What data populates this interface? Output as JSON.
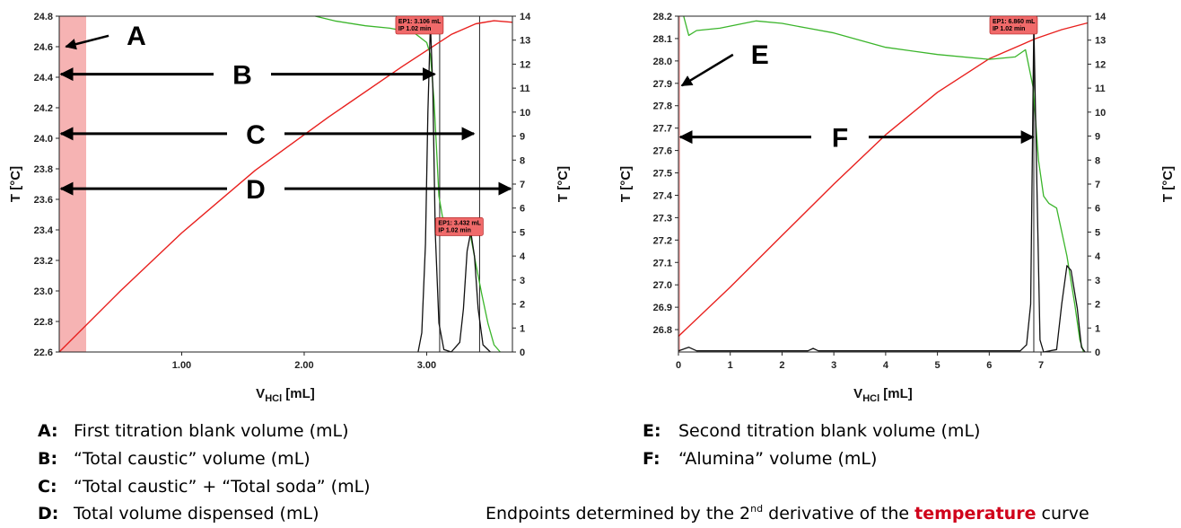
{
  "colors": {
    "temperature": "#e8201e",
    "first_derivative": "#3bb52b",
    "second_derivative": "#111111",
    "blank_band": "#f6b3b3",
    "ep_label": "#f06a6a"
  },
  "chart_data": [
    {
      "type": "line",
      "xlabel_main": "V",
      "xlabel_sub": "HCl",
      "xlabel_unit": " [mL]",
      "ylabel": "T [°C]",
      "y2label": "T [°C]",
      "xlim": [
        0,
        3.7
      ],
      "ylim": [
        22.6,
        24.8
      ],
      "y2lim": [
        0,
        14
      ],
      "xticks": [
        1.0,
        2.0,
        3.0
      ],
      "xtick_labels": [
        "1.00",
        "2.00",
        "3.00"
      ],
      "yticks": [
        22.6,
        22.8,
        23.0,
        23.2,
        23.4,
        23.6,
        23.8,
        24.0,
        24.2,
        24.4,
        24.6,
        24.8
      ],
      "ytick_labels": [
        "22.6",
        "22.8",
        "23.0",
        "23.2",
        "23.4",
        "23.6",
        "23.8",
        "24.0",
        "24.2",
        "24.4",
        "24.6",
        "24.8"
      ],
      "y2ticks": [
        0,
        1,
        2,
        3,
        4,
        5,
        6,
        7,
        8,
        9,
        10,
        11,
        12,
        13,
        14
      ],
      "y2tick_labels": [
        "0",
        "1",
        "2",
        "3",
        "4",
        "5",
        "6",
        "7",
        "8",
        "9",
        "10",
        "11",
        "12",
        "13",
        "14"
      ],
      "shaded_band": [
        0,
        0.22
      ],
      "endpoints": [
        {
          "x": 3.106,
          "line1": "EP1: 3.106 mL",
          "line2": "IP 1.02 min"
        },
        {
          "x": 3.432,
          "line1": "EP1: 3.432 mL",
          "line2": "IP 1.02 min"
        }
      ],
      "arrows": [
        {
          "label": "A",
          "kind": "pointer",
          "target": [
            0.04,
            24.6
          ],
          "label_at": [
            0.55,
            24.66
          ]
        },
        {
          "label": "B",
          "kind": "span",
          "from": 0,
          "to": 3.08,
          "y": 24.42
        },
        {
          "label": "C",
          "kind": "span",
          "from": 0,
          "to": 3.4,
          "y": 24.03
        },
        {
          "label": "D",
          "kind": "span",
          "from": 0,
          "to": 3.7,
          "y": 23.67
        }
      ],
      "series": [
        {
          "role": "temperature",
          "axis": "left",
          "points": [
            [
              0,
              22.6
            ],
            [
              0.5,
              23.0
            ],
            [
              1.0,
              23.38
            ],
            [
              1.6,
              23.79
            ],
            [
              2.2,
              24.14
            ],
            [
              2.8,
              24.47
            ],
            [
              3.2,
              24.68
            ],
            [
              3.4,
              24.75
            ],
            [
              3.55,
              24.77
            ],
            [
              3.7,
              24.76
            ]
          ]
        },
        {
          "role": "first_derivative",
          "axis": "right",
          "points": [
            [
              2.09,
              14
            ],
            [
              2.25,
              13.8
            ],
            [
              2.5,
              13.6
            ],
            [
              2.7,
              13.5
            ],
            [
              2.9,
              13.3
            ],
            [
              3.0,
              12.9
            ],
            [
              3.03,
              12.4
            ],
            [
              3.06,
              10.5
            ],
            [
              3.08,
              8.5
            ],
            [
              3.1,
              6.5
            ],
            [
              3.13,
              5.6
            ],
            [
              3.2,
              5.5
            ],
            [
              3.3,
              5.3
            ],
            [
              3.36,
              4.8
            ],
            [
              3.4,
              3.7
            ],
            [
              3.45,
              2.4
            ],
            [
              3.5,
              1.2
            ],
            [
              3.55,
              0.3
            ],
            [
              3.6,
              0
            ]
          ]
        },
        {
          "role": "second_derivative",
          "axis": "right",
          "points": [
            [
              2.93,
              0
            ],
            [
              2.96,
              0.8
            ],
            [
              2.99,
              4.5
            ],
            [
              3.01,
              10
            ],
            [
              3.03,
              13.7
            ],
            [
              3.05,
              11
            ],
            [
              3.07,
              5
            ],
            [
              3.1,
              1.2
            ],
            [
              3.14,
              0.1
            ],
            [
              3.2,
              0
            ],
            [
              3.27,
              0.4
            ],
            [
              3.3,
              1.8
            ],
            [
              3.33,
              4.2
            ],
            [
              3.36,
              5.0
            ],
            [
              3.39,
              4.0
            ],
            [
              3.42,
              1.8
            ],
            [
              3.46,
              0.3
            ],
            [
              3.52,
              0
            ]
          ]
        }
      ]
    },
    {
      "type": "line",
      "xlabel_main": "V",
      "xlabel_sub": "HCl",
      "xlabel_unit": " [mL]",
      "ylabel": "T [°C]",
      "y2label": "T [°C]",
      "xlim": [
        0,
        7.9
      ],
      "ylim": [
        26.7,
        28.2
      ],
      "y2lim": [
        0,
        14
      ],
      "xticks": [
        0,
        1,
        2,
        3,
        4,
        5,
        6,
        7
      ],
      "xtick_labels": [
        "0",
        "1",
        "2",
        "3",
        "4",
        "5",
        "6",
        "7"
      ],
      "yticks": [
        26.8,
        26.9,
        27.0,
        27.1,
        27.2,
        27.3,
        27.4,
        27.5,
        27.6,
        27.7,
        27.8,
        27.9,
        28.0,
        28.1,
        28.2
      ],
      "ytick_labels": [
        "26.8",
        "26.9",
        "27.0",
        "27.1",
        "27.2",
        "27.3",
        "27.4",
        "27.5",
        "27.6",
        "27.7",
        "27.8",
        "27.9",
        "28.0",
        "28.1",
        "28.2"
      ],
      "y2ticks": [
        0,
        1,
        2,
        3,
        4,
        5,
        6,
        7,
        8,
        9,
        10,
        11,
        12,
        13,
        14
      ],
      "y2tick_labels": [
        "0",
        "1",
        "2",
        "3",
        "4",
        "5",
        "6",
        "7",
        "8",
        "9",
        "10",
        "11",
        "12",
        "13",
        "14"
      ],
      "shaded_band": [
        0,
        0.03
      ],
      "endpoints": [
        {
          "x": 6.86,
          "line1": "EP1: 6.860 mL",
          "line2": "IP 1.02 min"
        }
      ],
      "arrows": [
        {
          "label": "E",
          "kind": "pointer",
          "target": [
            0.03,
            27.89
          ],
          "label_at": [
            1.4,
            28.02
          ]
        },
        {
          "label": "F",
          "kind": "span",
          "from": 0,
          "to": 6.88,
          "y": 27.66
        }
      ],
      "series": [
        {
          "role": "temperature",
          "axis": "left",
          "points": [
            [
              0,
              26.77
            ],
            [
              1.0,
              26.99
            ],
            [
              2.0,
              27.22
            ],
            [
              3.0,
              27.45
            ],
            [
              4.0,
              27.67
            ],
            [
              5.0,
              27.86
            ],
            [
              6.0,
              28.01
            ],
            [
              6.9,
              28.1
            ],
            [
              7.4,
              28.14
            ],
            [
              7.9,
              28.17
            ]
          ]
        },
        {
          "role": "first_derivative",
          "axis": "right",
          "points": [
            [
              0.1,
              14
            ],
            [
              0.2,
              13.2
            ],
            [
              0.35,
              13.4
            ],
            [
              0.8,
              13.5
            ],
            [
              1.5,
              13.8
            ],
            [
              2.0,
              13.7
            ],
            [
              2.5,
              13.5
            ],
            [
              3.0,
              13.3
            ],
            [
              3.5,
              13.0
            ],
            [
              4.0,
              12.7
            ],
            [
              5.0,
              12.4
            ],
            [
              6.0,
              12.2
            ],
            [
              6.5,
              12.3
            ],
            [
              6.7,
              12.6
            ],
            [
              6.85,
              11
            ],
            [
              6.95,
              8
            ],
            [
              7.05,
              6.5
            ],
            [
              7.15,
              6.2
            ],
            [
              7.3,
              6.0
            ],
            [
              7.5,
              4.0
            ],
            [
              7.65,
              2.0
            ],
            [
              7.75,
              0.5
            ],
            [
              7.82,
              0
            ]
          ]
        },
        {
          "role": "second_derivative",
          "axis": "right",
          "points": [
            [
              0,
              0.05
            ],
            [
              0.2,
              0.2
            ],
            [
              0.35,
              0.05
            ],
            [
              2.5,
              0.05
            ],
            [
              2.6,
              0.15
            ],
            [
              2.7,
              0.05
            ],
            [
              6.6,
              0.05
            ],
            [
              6.72,
              0.3
            ],
            [
              6.8,
              2
            ],
            [
              6.86,
              13.7
            ],
            [
              6.92,
              7
            ],
            [
              6.98,
              0.5
            ],
            [
              7.05,
              0
            ],
            [
              7.3,
              0.1
            ],
            [
              7.4,
              2
            ],
            [
              7.5,
              3.6
            ],
            [
              7.58,
              3.4
            ],
            [
              7.7,
              1.8
            ],
            [
              7.78,
              0.2
            ],
            [
              7.85,
              0
            ]
          ]
        }
      ]
    }
  ],
  "legend_left": [
    {
      "key": "A:",
      "text": "First titration blank volume (mL)"
    },
    {
      "key": "B:",
      "text": "“Total caustic” volume (mL)"
    },
    {
      "key": "C:",
      "text": "“Total caustic” + “Total soda” (mL)"
    },
    {
      "key": "D:",
      "text": "Total volume dispensed (mL)"
    }
  ],
  "legend_right": [
    {
      "key": "E:",
      "text": "Second titration blank volume (mL)"
    },
    {
      "key": "F:",
      "text": "“Alumina” volume (mL)"
    }
  ],
  "note": {
    "before": "Endpoints determined by the 2",
    "sup": "nd",
    "middle": " derivative of the ",
    "highlight": "temperature",
    "after": " curve"
  }
}
